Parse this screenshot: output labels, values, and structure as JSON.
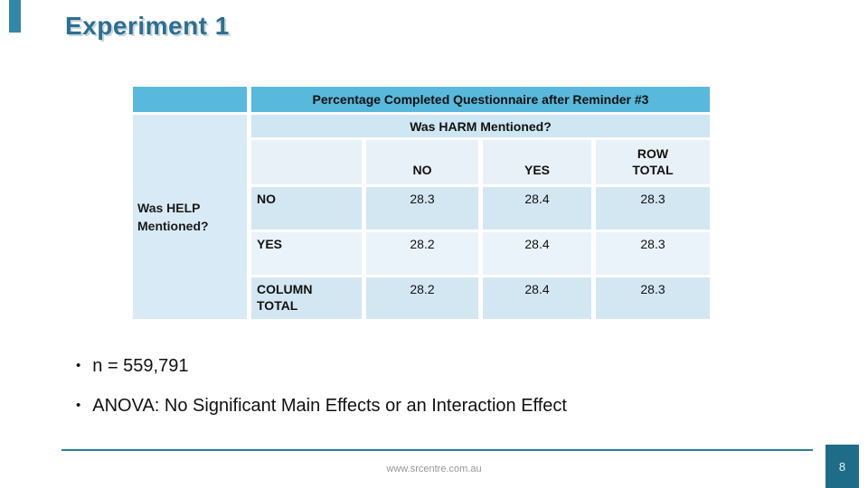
{
  "slide": {
    "title": "Experiment 1",
    "footer_url": "www.srcentre.com.au",
    "page_number": "8"
  },
  "table": {
    "top_header": "Percentage Completed Questionnaire after Reminder #3",
    "col_group_header": "Was HARM Mentioned?",
    "row_group_header": "Was HELP Mentioned?",
    "col_headers": [
      "NO",
      "YES",
      "ROW TOTAL"
    ],
    "rows": [
      {
        "label": "NO",
        "values": [
          "28.3",
          "28.4",
          "28.3"
        ]
      },
      {
        "label": "YES",
        "values": [
          "28.2",
          "28.4",
          "28.3"
        ]
      },
      {
        "label": "COLUMN TOTAL",
        "values": [
          "28.2",
          "28.4",
          "28.3"
        ]
      }
    ]
  },
  "bullets": {
    "items": [
      "n = 559,791",
      "ANOVA: No Significant Main Effects or an Interaction Effect"
    ]
  },
  "colors": {
    "title_text": "#2d6e91",
    "table_header_blue": "#58b9dc",
    "table_light_blue": "#cfe6f3",
    "table_left_column": "#d8eaf6",
    "table_row_dark": "#d3e7f3",
    "table_row_light": "#eaf3fa",
    "accent_teal": "#1e6c88",
    "footer_line": "#2b7d99",
    "footer_text": "#969696"
  }
}
